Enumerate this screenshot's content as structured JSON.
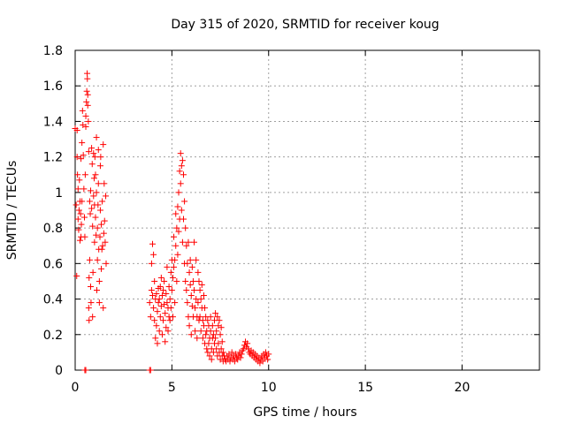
{
  "chart_data": {
    "type": "scatter",
    "title": "Day 315 of 2020, SRMTID for receiver koug",
    "xlabel": "GPS time / hours",
    "ylabel": "SRMTID / TECUs",
    "xlim": [
      0,
      24
    ],
    "ylim": [
      0,
      1.8
    ],
    "xticks": [
      0,
      5,
      10,
      15,
      20
    ],
    "yticks": [
      0,
      0.2,
      0.4,
      0.6,
      0.8,
      1,
      1.2,
      1.4,
      1.6,
      1.8
    ],
    "xtick_labels": [
      "0",
      "5",
      "10",
      "15",
      "20"
    ],
    "ytick_labels": [
      "0",
      "0.2",
      "0.4",
      "0.6",
      "0.8",
      "1",
      "1.2",
      "1.4",
      "1.6",
      "1.8"
    ],
    "grid": true,
    "marker": "plus",
    "color": "#ff0000",
    "series": [
      {
        "name": "SRMTID",
        "points": [
          [
            0.0,
            1.36
          ],
          [
            0.05,
            0.93
          ],
          [
            0.08,
            0.53
          ],
          [
            0.1,
            1.2
          ],
          [
            0.1,
            1.35
          ],
          [
            0.12,
            1.1
          ],
          [
            0.15,
            0.85
          ],
          [
            0.15,
            1.02
          ],
          [
            0.18,
            0.79
          ],
          [
            0.2,
            0.9
          ],
          [
            0.22,
            1.07
          ],
          [
            0.25,
            0.95
          ],
          [
            0.25,
            0.73
          ],
          [
            0.28,
            0.88
          ],
          [
            0.3,
            0.75
          ],
          [
            0.3,
            1.19
          ],
          [
            0.32,
            0.82
          ],
          [
            0.35,
            0.95
          ],
          [
            0.35,
            1.28
          ],
          [
            0.38,
            1.46
          ],
          [
            0.4,
            1.38
          ],
          [
            0.42,
            1.21
          ],
          [
            0.45,
            1.02
          ],
          [
            0.48,
            0.86
          ],
          [
            0.5,
            0.75
          ],
          [
            0.52,
            1.1
          ],
          [
            0.55,
            1.37
          ],
          [
            0.55,
            1.43
          ],
          [
            0.58,
            1.51
          ],
          [
            0.6,
            1.57
          ],
          [
            0.62,
            1.67
          ],
          [
            0.63,
            1.64
          ],
          [
            0.65,
            1.55
          ],
          [
            0.65,
            1.49
          ],
          [
            0.68,
            1.4
          ],
          [
            0.7,
            1.23
          ],
          [
            0.7,
            0.35
          ],
          [
            0.72,
            0.28
          ],
          [
            0.72,
            0.52
          ],
          [
            0.75,
            0.62
          ],
          [
            0.75,
            0.95
          ],
          [
            0.78,
            0.88
          ],
          [
            0.8,
            1.01
          ],
          [
            0.8,
            0.47
          ],
          [
            0.82,
            0.38
          ],
          [
            0.85,
            0.91
          ],
          [
            0.85,
            1.25
          ],
          [
            0.88,
            1.16
          ],
          [
            0.9,
            0.81
          ],
          [
            0.9,
            0.3
          ],
          [
            0.92,
            0.55
          ],
          [
            0.95,
            0.98
          ],
          [
            0.95,
            1.22
          ],
          [
            0.98,
            1.08
          ],
          [
            1.0,
            0.93
          ],
          [
            1.0,
            0.72
          ],
          [
            1.02,
            1.2
          ],
          [
            1.05,
            1.1
          ],
          [
            1.05,
            0.86
          ],
          [
            1.08,
            0.76
          ],
          [
            1.1,
            1.0
          ],
          [
            1.1,
            1.31
          ],
          [
            1.12,
            0.45
          ],
          [
            1.15,
            0.62
          ],
          [
            1.15,
            0.8
          ],
          [
            1.18,
            0.93
          ],
          [
            1.2,
            1.05
          ],
          [
            1.2,
            1.24
          ],
          [
            1.22,
            0.68
          ],
          [
            1.25,
            0.38
          ],
          [
            1.25,
            0.5
          ],
          [
            1.28,
            0.75
          ],
          [
            1.3,
            0.9
          ],
          [
            1.3,
            1.15
          ],
          [
            1.32,
            1.2
          ],
          [
            1.35,
            0.82
          ],
          [
            1.35,
            0.57
          ],
          [
            1.38,
            0.68
          ],
          [
            1.4,
            0.95
          ],
          [
            1.42,
            0.7
          ],
          [
            1.45,
            1.27
          ],
          [
            1.45,
            0.35
          ],
          [
            1.48,
            0.77
          ],
          [
            1.5,
            1.05
          ],
          [
            1.52,
            0.84
          ],
          [
            1.55,
            0.72
          ],
          [
            1.58,
            0.98
          ],
          [
            1.6,
            0.6
          ],
          [
            0.5,
            0.0
          ],
          [
            0.55,
            0.0
          ],
          [
            3.85,
            0.0
          ],
          [
            3.9,
            0.0
          ],
          [
            3.85,
            0.38
          ],
          [
            3.9,
            0.3
          ],
          [
            3.95,
            0.45
          ],
          [
            3.95,
            0.6
          ],
          [
            4.0,
            0.71
          ],
          [
            4.0,
            0.42
          ],
          [
            4.05,
            0.35
          ],
          [
            4.05,
            0.65
          ],
          [
            4.1,
            0.28
          ],
          [
            4.1,
            0.5
          ],
          [
            4.15,
            0.4
          ],
          [
            4.15,
            0.18
          ],
          [
            4.2,
            0.25
          ],
          [
            4.2,
            0.43
          ],
          [
            4.25,
            0.33
          ],
          [
            4.25,
            0.15
          ],
          [
            4.3,
            0.38
          ],
          [
            4.3,
            0.46
          ],
          [
            4.35,
            0.22
          ],
          [
            4.35,
            0.4
          ],
          [
            4.4,
            0.47
          ],
          [
            4.4,
            0.3
          ],
          [
            4.45,
            0.36
          ],
          [
            4.45,
            0.52
          ],
          [
            4.5,
            0.42
          ],
          [
            4.5,
            0.2
          ],
          [
            4.55,
            0.28
          ],
          [
            4.55,
            0.45
          ],
          [
            4.6,
            0.37
          ],
          [
            4.6,
            0.5
          ],
          [
            4.65,
            0.32
          ],
          [
            4.65,
            0.16
          ],
          [
            4.7,
            0.24
          ],
          [
            4.7,
            0.43
          ],
          [
            4.75,
            0.38
          ],
          [
            4.75,
            0.58
          ],
          [
            4.8,
            0.35
          ],
          [
            4.8,
            0.22
          ],
          [
            4.85,
            0.3
          ],
          [
            4.85,
            0.47
          ],
          [
            4.9,
            0.4
          ],
          [
            4.9,
            0.28
          ],
          [
            4.95,
            0.55
          ],
          [
            4.95,
            0.35
          ],
          [
            5.0,
            0.62
          ],
          [
            5.0,
            0.45
          ],
          [
            5.05,
            0.52
          ],
          [
            5.05,
            0.3
          ],
          [
            5.1,
            0.75
          ],
          [
            5.1,
            0.58
          ],
          [
            5.15,
            0.62
          ],
          [
            5.15,
            0.38
          ],
          [
            5.2,
            0.88
          ],
          [
            5.2,
            0.7
          ],
          [
            5.25,
            0.8
          ],
          [
            5.25,
            0.5
          ],
          [
            5.3,
            0.92
          ],
          [
            5.3,
            0.65
          ],
          [
            5.35,
            1.0
          ],
          [
            5.35,
            0.78
          ],
          [
            5.4,
            1.12
          ],
          [
            5.4,
            0.85
          ],
          [
            5.45,
            1.22
          ],
          [
            5.45,
            1.05
          ],
          [
            5.5,
            1.15
          ],
          [
            5.5,
            0.9
          ],
          [
            5.55,
            1.18
          ],
          [
            5.55,
            0.72
          ],
          [
            5.6,
            1.1
          ],
          [
            5.6,
            0.85
          ],
          [
            5.65,
            0.95
          ],
          [
            5.65,
            0.6
          ],
          [
            5.7,
            0.8
          ],
          [
            5.7,
            0.5
          ],
          [
            5.75,
            0.7
          ],
          [
            5.75,
            0.45
          ],
          [
            5.8,
            0.6
          ],
          [
            5.8,
            0.38
          ],
          [
            5.85,
            0.72
          ],
          [
            5.85,
            0.3
          ],
          [
            5.9,
            0.55
          ],
          [
            5.9,
            0.25
          ],
          [
            5.95,
            0.62
          ],
          [
            5.95,
            0.48
          ],
          [
            6.0,
            0.42
          ],
          [
            6.0,
            0.2
          ],
          [
            6.05,
            0.58
          ],
          [
            6.05,
            0.36
          ],
          [
            6.1,
            0.5
          ],
          [
            6.1,
            0.3
          ],
          [
            6.15,
            0.72
          ],
          [
            6.15,
            0.45
          ],
          [
            6.2,
            0.35
          ],
          [
            6.2,
            0.22
          ],
          [
            6.25,
            0.62
          ],
          [
            6.25,
            0.4
          ],
          [
            6.3,
            0.3
          ],
          [
            6.3,
            0.18
          ],
          [
            6.35,
            0.55
          ],
          [
            6.35,
            0.38
          ],
          [
            6.4,
            0.5
          ],
          [
            6.4,
            0.28
          ],
          [
            6.45,
            0.45
          ],
          [
            6.45,
            0.3
          ],
          [
            6.5,
            0.4
          ],
          [
            6.5,
            0.22
          ],
          [
            6.55,
            0.35
          ],
          [
            6.55,
            0.48
          ],
          [
            6.6,
            0.28
          ],
          [
            6.6,
            0.18
          ],
          [
            6.65,
            0.42
          ],
          [
            6.65,
            0.25
          ],
          [
            6.7,
            0.35
          ],
          [
            6.7,
            0.15
          ],
          [
            6.75,
            0.3
          ],
          [
            6.75,
            0.2
          ],
          [
            6.8,
            0.22
          ],
          [
            6.8,
            0.12
          ],
          [
            6.85,
            0.28
          ],
          [
            6.85,
            0.1
          ],
          [
            6.9,
            0.25
          ],
          [
            6.9,
            0.15
          ],
          [
            6.95,
            0.18
          ],
          [
            6.95,
            0.08
          ],
          [
            7.0,
            0.22
          ],
          [
            7.0,
            0.3
          ],
          [
            7.05,
            0.12
          ],
          [
            7.05,
            0.06
          ],
          [
            7.1,
            0.18
          ],
          [
            7.1,
            0.25
          ],
          [
            7.15,
            0.2
          ],
          [
            7.15,
            0.1
          ],
          [
            7.2,
            0.15
          ],
          [
            7.2,
            0.28
          ],
          [
            7.25,
            0.32
          ],
          [
            7.25,
            0.18
          ],
          [
            7.3,
            0.22
          ],
          [
            7.3,
            0.12
          ],
          [
            7.35,
            0.3
          ],
          [
            7.35,
            0.08
          ],
          [
            7.4,
            0.25
          ],
          [
            7.4,
            0.15
          ],
          [
            7.45,
            0.28
          ],
          [
            7.45,
            0.1
          ],
          [
            7.5,
            0.2
          ],
          [
            7.5,
            0.06
          ],
          [
            7.55,
            0.24
          ],
          [
            7.55,
            0.12
          ],
          [
            7.6,
            0.16
          ],
          [
            7.6,
            0.08
          ],
          [
            7.65,
            0.1
          ],
          [
            7.65,
            0.05
          ],
          [
            7.7,
            0.08
          ],
          [
            7.75,
            0.06
          ],
          [
            7.8,
            0.05
          ],
          [
            7.85,
            0.08
          ],
          [
            7.9,
            0.06
          ],
          [
            7.95,
            0.09
          ],
          [
            8.0,
            0.05
          ],
          [
            8.05,
            0.07
          ],
          [
            8.1,
            0.1
          ],
          [
            8.15,
            0.06
          ],
          [
            8.2,
            0.08
          ],
          [
            8.25,
            0.05
          ],
          [
            8.3,
            0.09
          ],
          [
            8.35,
            0.07
          ],
          [
            8.4,
            0.06
          ],
          [
            8.45,
            0.08
          ],
          [
            8.5,
            0.1
          ],
          [
            8.55,
            0.07
          ],
          [
            8.6,
            0.09
          ],
          [
            8.65,
            0.11
          ],
          [
            8.7,
            0.12
          ],
          [
            8.75,
            0.14
          ],
          [
            8.8,
            0.16
          ],
          [
            8.85,
            0.13
          ],
          [
            8.9,
            0.15
          ],
          [
            8.95,
            0.12
          ],
          [
            9.0,
            0.1
          ],
          [
            9.05,
            0.09
          ],
          [
            9.1,
            0.11
          ],
          [
            9.15,
            0.08
          ],
          [
            9.2,
            0.1
          ],
          [
            9.25,
            0.07
          ],
          [
            9.3,
            0.09
          ],
          [
            9.35,
            0.06
          ],
          [
            9.4,
            0.08
          ],
          [
            9.45,
            0.05
          ],
          [
            9.5,
            0.07
          ],
          [
            9.55,
            0.04
          ],
          [
            9.6,
            0.06
          ],
          [
            9.65,
            0.08
          ],
          [
            9.7,
            0.05
          ],
          [
            9.75,
            0.09
          ],
          [
            9.8,
            0.07
          ],
          [
            9.85,
            0.1
          ],
          [
            9.9,
            0.08
          ],
          [
            9.95,
            0.06
          ],
          [
            10.0,
            0.09
          ]
        ]
      }
    ]
  }
}
